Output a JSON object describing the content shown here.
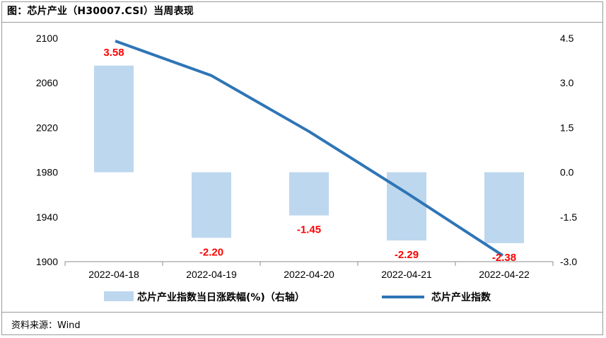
{
  "title": "图：芯片产业（H30007.CSI）当周表现",
  "source": "资料来源：Wind",
  "chart_data": {
    "type": "bar+line",
    "categories": [
      "2022-04-18",
      "2022-04-19",
      "2022-04-20",
      "2022-04-21",
      "2022-04-22"
    ],
    "bar_series": {
      "name": "芯片产业指数当日涨跌幅(%)（右轴）",
      "axis": "right",
      "values": [
        3.58,
        -2.2,
        -1.45,
        -2.29,
        -2.38
      ],
      "labels": [
        "3.58",
        "-2.20",
        "-1.45",
        "-2.29",
        "-2.38"
      ],
      "color": "#bdd7ee",
      "label_color": "#ff0000"
    },
    "line_series": {
      "name": "芯片产业指数",
      "axis": "left",
      "values": [
        2097.5,
        2066.5,
        2016.5,
        1961.5,
        1905.5
      ],
      "color": "#2e75b6"
    },
    "left_axis": {
      "min": 1900,
      "max": 2100,
      "ticks": [
        "2100",
        "2060",
        "2020",
        "1980",
        "1940",
        "1900"
      ]
    },
    "right_axis": {
      "min": -3.0,
      "max": 4.5,
      "ticks": [
        "4.5",
        "3.0",
        "1.5",
        "0.0",
        "-1.5",
        "-3.0"
      ]
    },
    "legend_position": "bottom"
  }
}
